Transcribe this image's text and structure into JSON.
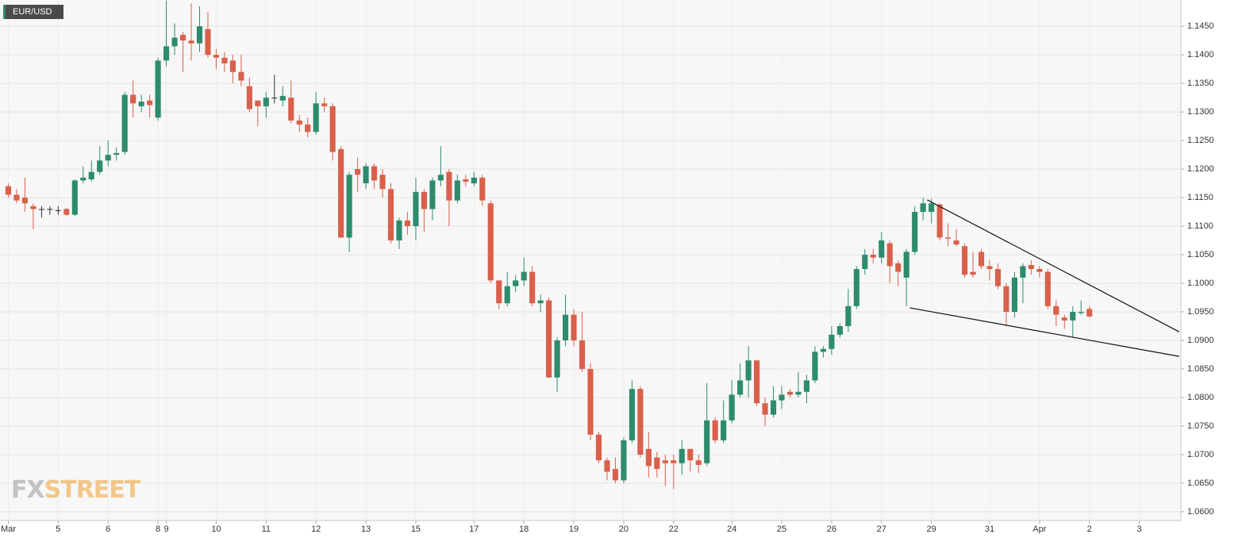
{
  "chart_data": {
    "type": "candlestick",
    "symbol": "EUR/USD",
    "watermark": [
      "FX",
      "STREET"
    ],
    "up_color": "#2e8b6e",
    "down_color": "#d9604a",
    "flat_color": "#333333",
    "grid": true,
    "xlim": [
      -1,
      141
    ],
    "ylim": [
      1.0586,
      1.1496
    ],
    "xticks": [
      {
        "value": 0,
        "label": "Mar"
      },
      {
        "value": 6,
        "label": "5"
      },
      {
        "value": 12,
        "label": "6"
      },
      {
        "value": 18,
        "label": "8"
      },
      {
        "value": 19,
        "label": "9"
      },
      {
        "value": 25,
        "label": "10"
      },
      {
        "value": 31,
        "label": "11"
      },
      {
        "value": 37,
        "label": "12"
      },
      {
        "value": 43,
        "label": "13"
      },
      {
        "value": 49,
        "label": "15"
      },
      {
        "value": 56,
        "label": "17"
      },
      {
        "value": 62,
        "label": "18"
      },
      {
        "value": 68,
        "label": "19"
      },
      {
        "value": 74,
        "label": "20"
      },
      {
        "value": 80,
        "label": "22"
      },
      {
        "value": 87,
        "label": "24"
      },
      {
        "value": 93,
        "label": "25"
      },
      {
        "value": 99,
        "label": "26"
      },
      {
        "value": 105,
        "label": "27"
      },
      {
        "value": 111,
        "label": "29"
      },
      {
        "value": 118,
        "label": "31"
      },
      {
        "value": 124,
        "label": "Apr"
      },
      {
        "value": 130,
        "label": "2"
      },
      {
        "value": 136,
        "label": "3"
      }
    ],
    "yticks": [
      {
        "value": 1.06,
        "label": "1.0600"
      },
      {
        "value": 1.065,
        "label": "1.0650"
      },
      {
        "value": 1.07,
        "label": "1.0700"
      },
      {
        "value": 1.075,
        "label": "1.0750"
      },
      {
        "value": 1.08,
        "label": "1.0800"
      },
      {
        "value": 1.085,
        "label": "1.0850"
      },
      {
        "value": 1.09,
        "label": "1.0900"
      },
      {
        "value": 1.095,
        "label": "1.0950"
      },
      {
        "value": 1.1,
        "label": "1.1000"
      },
      {
        "value": 1.105,
        "label": "1.1050"
      },
      {
        "value": 1.11,
        "label": "1.1100"
      },
      {
        "value": 1.115,
        "label": "1.1150"
      },
      {
        "value": 1.12,
        "label": "1.1200"
      },
      {
        "value": 1.125,
        "label": "1.1250"
      },
      {
        "value": 1.13,
        "label": "1.1300"
      },
      {
        "value": 1.135,
        "label": "1.1350"
      },
      {
        "value": 1.14,
        "label": "1.1400"
      },
      {
        "value": 1.145,
        "label": "1.1450"
      }
    ],
    "open": [
      1.117,
      1.1155,
      1.115,
      1.1135,
      1.113,
      1.113,
      1.1128,
      1.113,
      1.112,
      1.118,
      1.1182,
      1.1195,
      1.1215,
      1.1225,
      1.123,
      1.133,
      1.131,
      1.132,
      1.129,
      1.139,
      1.1415,
      1.1435,
      1.1425,
      1.142,
      1.1445,
      1.14,
      1.1395,
      1.139,
      1.137,
      1.1345,
      1.132,
      1.131,
      1.1325,
      1.132,
      1.1325,
      1.1285,
      1.1278,
      1.1265,
      1.1315,
      1.131,
      1.1235,
      1.108,
      1.12,
      1.1175,
      1.1205,
      1.119,
      1.1165,
      1.1075,
      1.111,
      1.11,
      1.116,
      1.113,
      1.118,
      1.1195,
      1.1145,
      1.1182,
      1.1175,
      1.1185,
      1.114,
      1.1005,
      1.0965,
      1.0995,
      1.1005,
      1.102,
      1.0965,
      1.097,
      1.0835,
      1.09,
      1.0945,
      1.09,
      1.085,
      1.0735,
      1.069,
      1.0675,
      1.0655,
      1.0725,
      1.0815,
      1.071,
      1.0695,
      1.069,
      1.069,
      1.0685,
      1.071,
      1.069,
      1.0685,
      1.076,
      1.0725,
      1.076,
      1.0805,
      1.083,
      1.0865,
      1.079,
      1.077,
      1.0795,
      1.081,
      1.0805,
      1.081,
      1.083,
      1.088,
      1.0885,
      1.091,
      1.0925,
      1.096,
      1.1025,
      1.105,
      1.1045,
      1.107,
      1.1035,
      1.101,
      1.1055,
      1.1125,
      1.1125,
      1.1138,
      1.108,
      1.1075,
      1.1065,
      1.102,
      1.1055,
      1.103,
      1.1025,
      1.0995,
      1.095,
      1.101,
      1.1032,
      1.1025,
      1.102,
      1.096,
      1.094,
      1.0935,
      1.0948,
      1.0955
    ],
    "high": [
      1.1175,
      1.1165,
      1.1185,
      1.114,
      1.1135,
      1.1135,
      1.1135,
      1.1132,
      1.1182,
      1.1205,
      1.1215,
      1.124,
      1.125,
      1.1238,
      1.1335,
      1.1355,
      1.133,
      1.133,
      1.1395,
      1.1495,
      1.1455,
      1.144,
      1.149,
      1.1485,
      1.1475,
      1.141,
      1.1405,
      1.14,
      1.14,
      1.136,
      1.132,
      1.1335,
      1.1365,
      1.1345,
      1.1355,
      1.1295,
      1.129,
      1.1335,
      1.1325,
      1.1315,
      1.124,
      1.1195,
      1.122,
      1.121,
      1.121,
      1.12,
      1.1175,
      1.1115,
      1.1125,
      1.1185,
      1.1165,
      1.1185,
      1.124,
      1.12,
      1.119,
      1.119,
      1.1195,
      1.119,
      1.1145,
      1.1005,
      1.102,
      1.1015,
      1.1045,
      1.103,
      1.098,
      1.0975,
      1.0905,
      1.098,
      1.0955,
      1.095,
      1.086,
      1.074,
      1.0695,
      1.0695,
      1.073,
      1.083,
      1.082,
      1.074,
      1.0705,
      1.07,
      1.07,
      1.0725,
      1.071,
      1.07,
      1.0825,
      1.0765,
      1.0795,
      1.083,
      1.086,
      1.089,
      1.0865,
      1.08,
      1.082,
      1.082,
      1.0815,
      1.0845,
      1.084,
      1.089,
      1.089,
      1.0925,
      1.093,
      1.099,
      1.103,
      1.106,
      1.106,
      1.109,
      1.1075,
      1.104,
      1.106,
      1.1135,
      1.115,
      1.1148,
      1.114,
      1.1105,
      1.1095,
      1.107,
      1.1055,
      1.106,
      1.104,
      1.1035,
      1.1,
      1.102,
      1.1035,
      1.104,
      1.103,
      1.1025,
      1.097,
      1.0945,
      1.096,
      1.097,
      1.096
    ],
    "low": [
      1.115,
      1.114,
      1.1125,
      1.1095,
      1.1115,
      1.112,
      1.112,
      1.1118,
      1.1118,
      1.1175,
      1.1178,
      1.119,
      1.1205,
      1.1215,
      1.1225,
      1.129,
      1.13,
      1.129,
      1.1285,
      1.138,
      1.14,
      1.137,
      1.139,
      1.1405,
      1.1395,
      1.1375,
      1.137,
      1.135,
      1.1345,
      1.13,
      1.1275,
      1.129,
      1.1315,
      1.131,
      1.128,
      1.1265,
      1.1255,
      1.126,
      1.13,
      1.1215,
      1.108,
      1.1055,
      1.116,
      1.1165,
      1.1165,
      1.115,
      1.107,
      1.106,
      1.1085,
      1.1075,
      1.109,
      1.111,
      1.117,
      1.11,
      1.114,
      1.117,
      1.117,
      1.1135,
      1.1,
      1.0955,
      1.096,
      1.0985,
      1.0995,
      1.096,
      1.095,
      1.0835,
      1.081,
      1.089,
      1.089,
      1.0845,
      1.0725,
      1.0685,
      1.0655,
      1.065,
      1.065,
      1.072,
      1.0695,
      1.066,
      1.066,
      1.0645,
      1.064,
      1.0665,
      1.067,
      1.0668,
      1.068,
      1.072,
      1.072,
      1.0755,
      1.08,
      1.08,
      1.0785,
      1.075,
      1.0765,
      1.078,
      1.08,
      1.08,
      1.079,
      1.0825,
      1.087,
      1.0875,
      1.0905,
      1.0915,
      1.0955,
      1.1015,
      1.1035,
      1.1035,
      1.1,
      1.0995,
      1.096,
      1.105,
      1.111,
      1.1105,
      1.1075,
      1.1065,
      1.1065,
      1.101,
      1.101,
      1.1025,
      1.1005,
      1.099,
      1.0925,
      1.094,
      1.0965,
      1.1015,
      1.101,
      1.0955,
      1.0925,
      1.092,
      1.0905,
      1.0945,
      1.094
    ],
    "close": [
      1.1155,
      1.1145,
      1.114,
      1.113,
      1.113,
      1.113,
      1.1128,
      1.112,
      1.118,
      1.1185,
      1.1195,
      1.1215,
      1.1225,
      1.1228,
      1.133,
      1.1315,
      1.1318,
      1.1312,
      1.139,
      1.1415,
      1.143,
      1.1425,
      1.142,
      1.145,
      1.14,
      1.1395,
      1.1385,
      1.137,
      1.1355,
      1.1305,
      1.131,
      1.1325,
      1.1325,
      1.1328,
      1.1285,
      1.1278,
      1.1265,
      1.1315,
      1.131,
      1.123,
      1.108,
      1.119,
      1.119,
      1.1205,
      1.118,
      1.1165,
      1.1075,
      1.111,
      1.11,
      1.116,
      1.113,
      1.118,
      1.119,
      1.1145,
      1.118,
      1.1178,
      1.1185,
      1.1145,
      1.1005,
      1.0965,
      1.0995,
      1.1005,
      1.102,
      1.0965,
      1.097,
      1.0835,
      1.09,
      1.0945,
      1.09,
      1.085,
      1.0735,
      1.069,
      1.067,
      1.0655,
      1.0725,
      1.0815,
      1.07,
      1.068,
      1.0675,
      1.0685,
      1.0685,
      1.071,
      1.069,
      1.0682,
      1.076,
      1.0725,
      1.076,
      1.0805,
      1.083,
      1.0865,
      1.079,
      1.077,
      1.0795,
      1.0805,
      1.0805,
      1.081,
      1.083,
      1.088,
      1.0885,
      1.091,
      1.0925,
      1.096,
      1.1025,
      1.105,
      1.1045,
      1.1075,
      1.103,
      1.102,
      1.1055,
      1.1125,
      1.114,
      1.114,
      1.108,
      1.1078,
      1.1068,
      1.1015,
      1.1015,
      1.103,
      1.1025,
      1.0995,
      1.095,
      1.101,
      1.103,
      1.1025,
      1.102,
      1.096,
      1.0945,
      1.0935,
      1.095,
      1.095,
      1.0942
    ],
    "trendlines": [
      {
        "x": [
          110.5,
          140.8
        ],
        "y": [
          1.1146,
          1.0915
        ]
      },
      {
        "x": [
          108.4,
          140.8
        ],
        "y": [
          1.0957,
          1.0872
        ]
      }
    ]
  }
}
